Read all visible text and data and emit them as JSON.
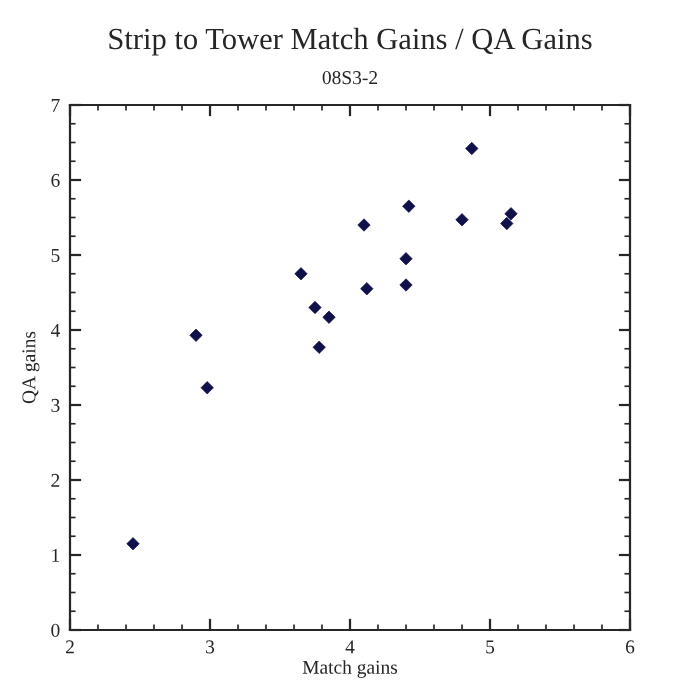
{
  "chart_data": {
    "type": "scatter",
    "title": "Strip to Tower Match Gains / QA Gains",
    "subtitle": "08S3-2",
    "xlabel": "Match gains",
    "ylabel": "QA gains",
    "x": [
      2.45,
      2.9,
      2.98,
      3.65,
      3.75,
      3.78,
      3.85,
      4.1,
      4.12,
      4.4,
      4.4,
      4.42,
      4.8,
      4.87,
      5.12,
      5.15
    ],
    "series": [
      {
        "color": "#10104a",
        "values": [
          1.15,
          3.93,
          3.23,
          4.75,
          4.3,
          3.77,
          4.17,
          5.4,
          4.55,
          4.6,
          4.95,
          5.65,
          5.47,
          6.42,
          5.42,
          5.55
        ]
      }
    ],
    "xlim": [
      2,
      6
    ],
    "ylim": [
      0,
      7
    ],
    "xticks": [
      2,
      3,
      4,
      5,
      6
    ],
    "yticks": [
      0,
      1,
      2,
      3,
      4,
      5,
      6,
      7
    ],
    "marker": "diamond",
    "grid": false,
    "legend": false
  }
}
